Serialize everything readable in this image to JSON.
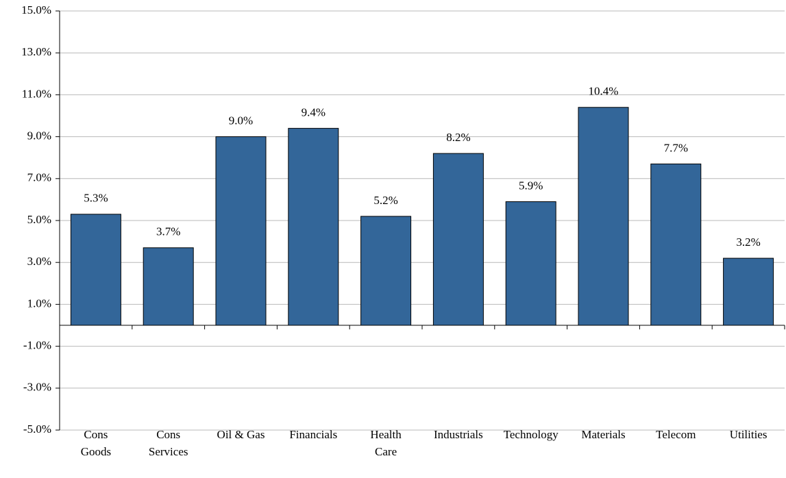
{
  "chart_data": {
    "type": "bar",
    "categories": [
      "Cons\nGoods",
      "Cons\nServices",
      "Oil & Gas",
      "Financials",
      "Health\nCare",
      "Industrials",
      "Technology",
      "Materials",
      "Telecom",
      "Utilities"
    ],
    "values": [
      5.3,
      3.7,
      9.0,
      9.4,
      5.2,
      8.2,
      5.9,
      10.4,
      7.7,
      3.2
    ],
    "value_labels": [
      "5.3%",
      "3.7%",
      "9.0%",
      "9.4%",
      "5.2%",
      "8.2%",
      "5.9%",
      "10.4%",
      "7.7%",
      "3.2%"
    ],
    "color": "#336699",
    "ylim": [
      -5,
      15
    ],
    "yticks": [
      {
        "value": -5,
        "label": "-5.0%"
      },
      {
        "value": -3,
        "label": "-3.0%"
      },
      {
        "value": -1,
        "label": "-1.0%"
      },
      {
        "value": 1,
        "label": "1.0%"
      },
      {
        "value": 3,
        "label": "3.0%"
      },
      {
        "value": 5,
        "label": "5.0%"
      },
      {
        "value": 7,
        "label": "7.0%"
      },
      {
        "value": 9,
        "label": "9.0%"
      },
      {
        "value": 11,
        "label": "11.0%"
      },
      {
        "value": 13,
        "label": "13.0%"
      },
      {
        "value": 15,
        "label": "15.0%"
      }
    ],
    "grid": true
  }
}
